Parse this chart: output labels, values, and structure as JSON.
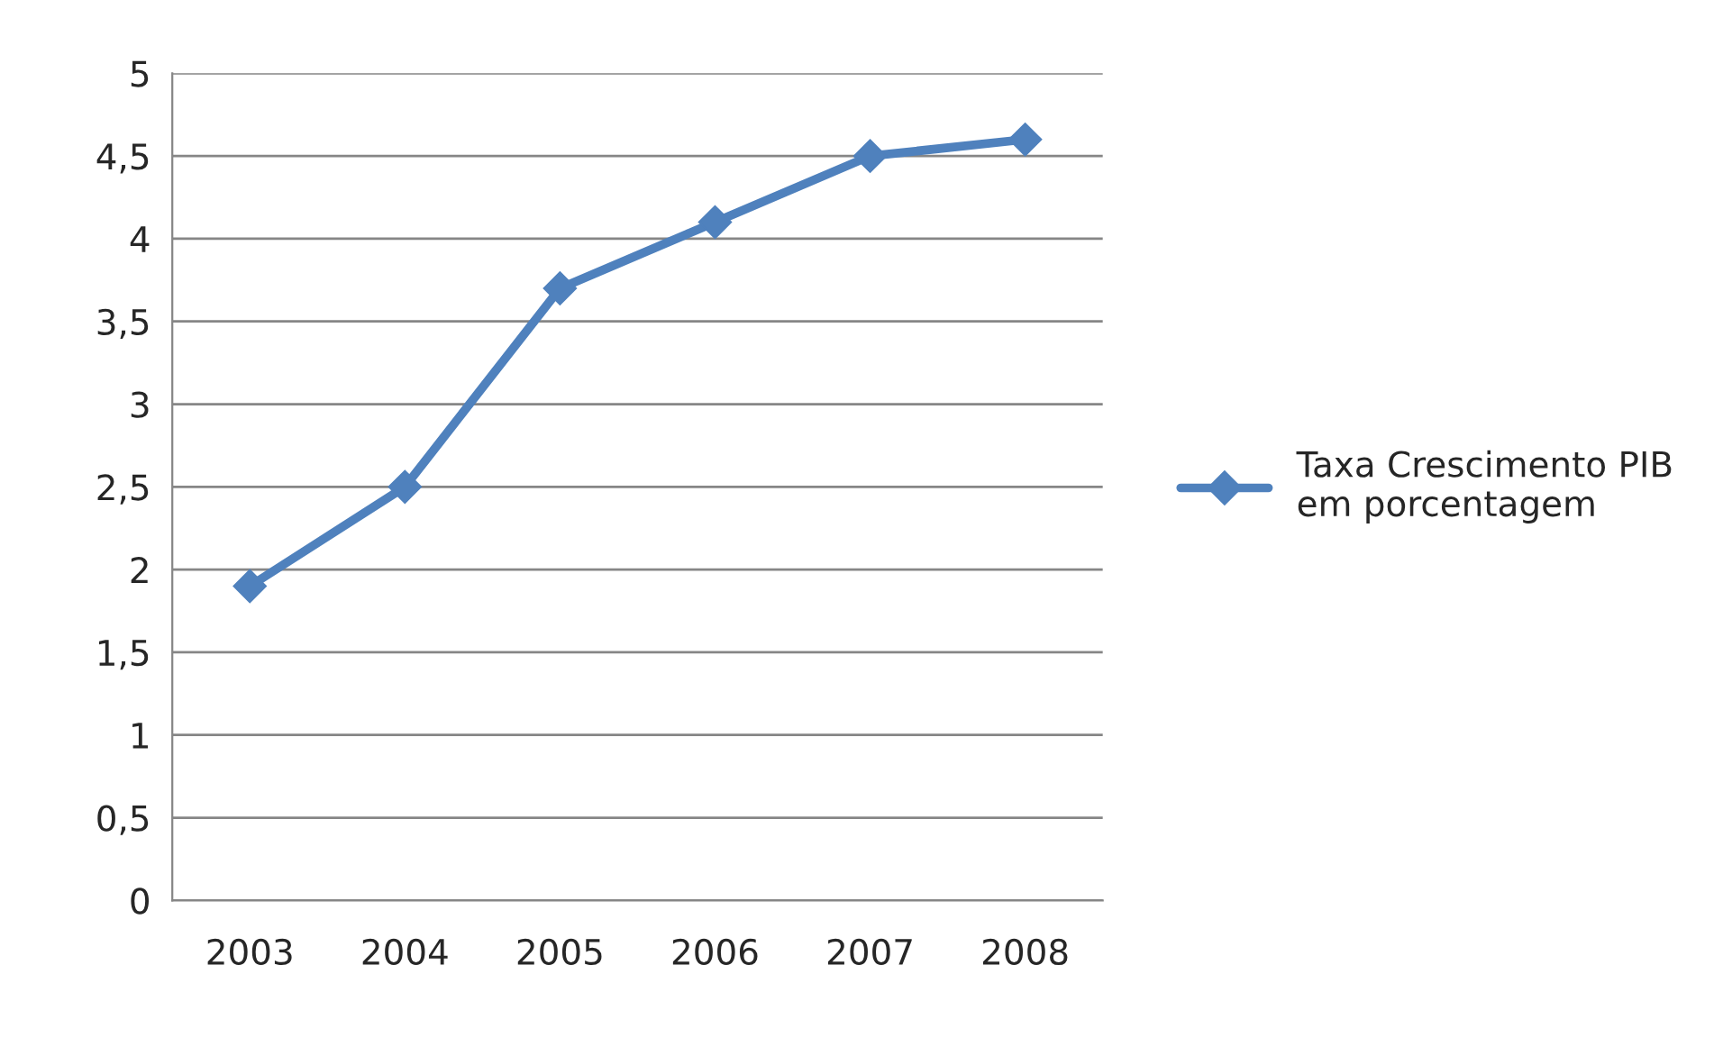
{
  "chart_data": {
    "type": "line",
    "categories": [
      "2003",
      "2004",
      "2005",
      "2006",
      "2007",
      "2008"
    ],
    "series": [
      {
        "name": "Taxa Crescimento PIB em porcentagem",
        "color": "#4f81bd",
        "values": [
          1.9,
          2.5,
          3.7,
          4.1,
          4.5,
          4.6
        ]
      }
    ],
    "ylim": [
      0,
      5
    ],
    "yticks": [
      0,
      {
        "value": 0.5,
        "label": "0,5"
      },
      1,
      {
        "value": 1.5,
        "label": "1,5"
      },
      2,
      {
        "value": 2.5,
        "label": "2,5"
      },
      3,
      {
        "value": 3.5,
        "label": "3,5"
      },
      4,
      {
        "value": 4.5,
        "label": "4,5"
      },
      5
    ],
    "grid": "y",
    "legend": "right",
    "marker": "diamond",
    "line_style": "solid"
  }
}
